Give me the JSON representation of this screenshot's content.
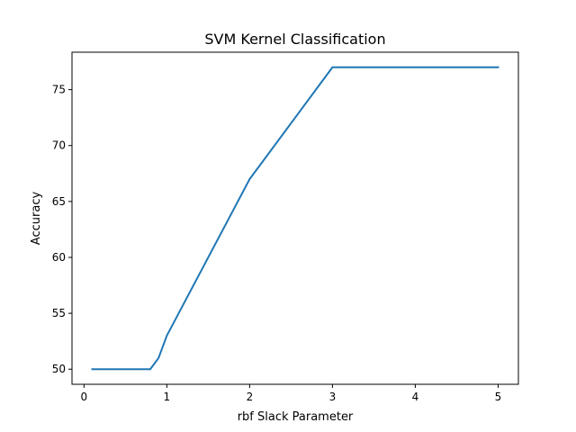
{
  "chart_data": {
    "type": "line",
    "title": "SVM Kernel Classification",
    "xlabel": "rbf Slack Parameter",
    "ylabel": "Accuracy",
    "xlim": [
      -0.145,
      5.245
    ],
    "ylim": [
      48.65,
      78.35
    ],
    "xticks": [
      0,
      1,
      2,
      3,
      4,
      5
    ],
    "yticks": [
      50,
      55,
      60,
      65,
      70,
      75
    ],
    "grid": false,
    "series": [
      {
        "color": "#1f77b4",
        "x": [
          0.1,
          0.2,
          0.3,
          0.4,
          0.5,
          0.6,
          0.7,
          0.8,
          0.9,
          1,
          2,
          3,
          4,
          5
        ],
        "y": [
          50,
          50,
          50,
          50,
          50,
          50,
          50,
          50,
          51,
          53,
          67,
          77,
          77,
          77
        ]
      }
    ]
  }
}
